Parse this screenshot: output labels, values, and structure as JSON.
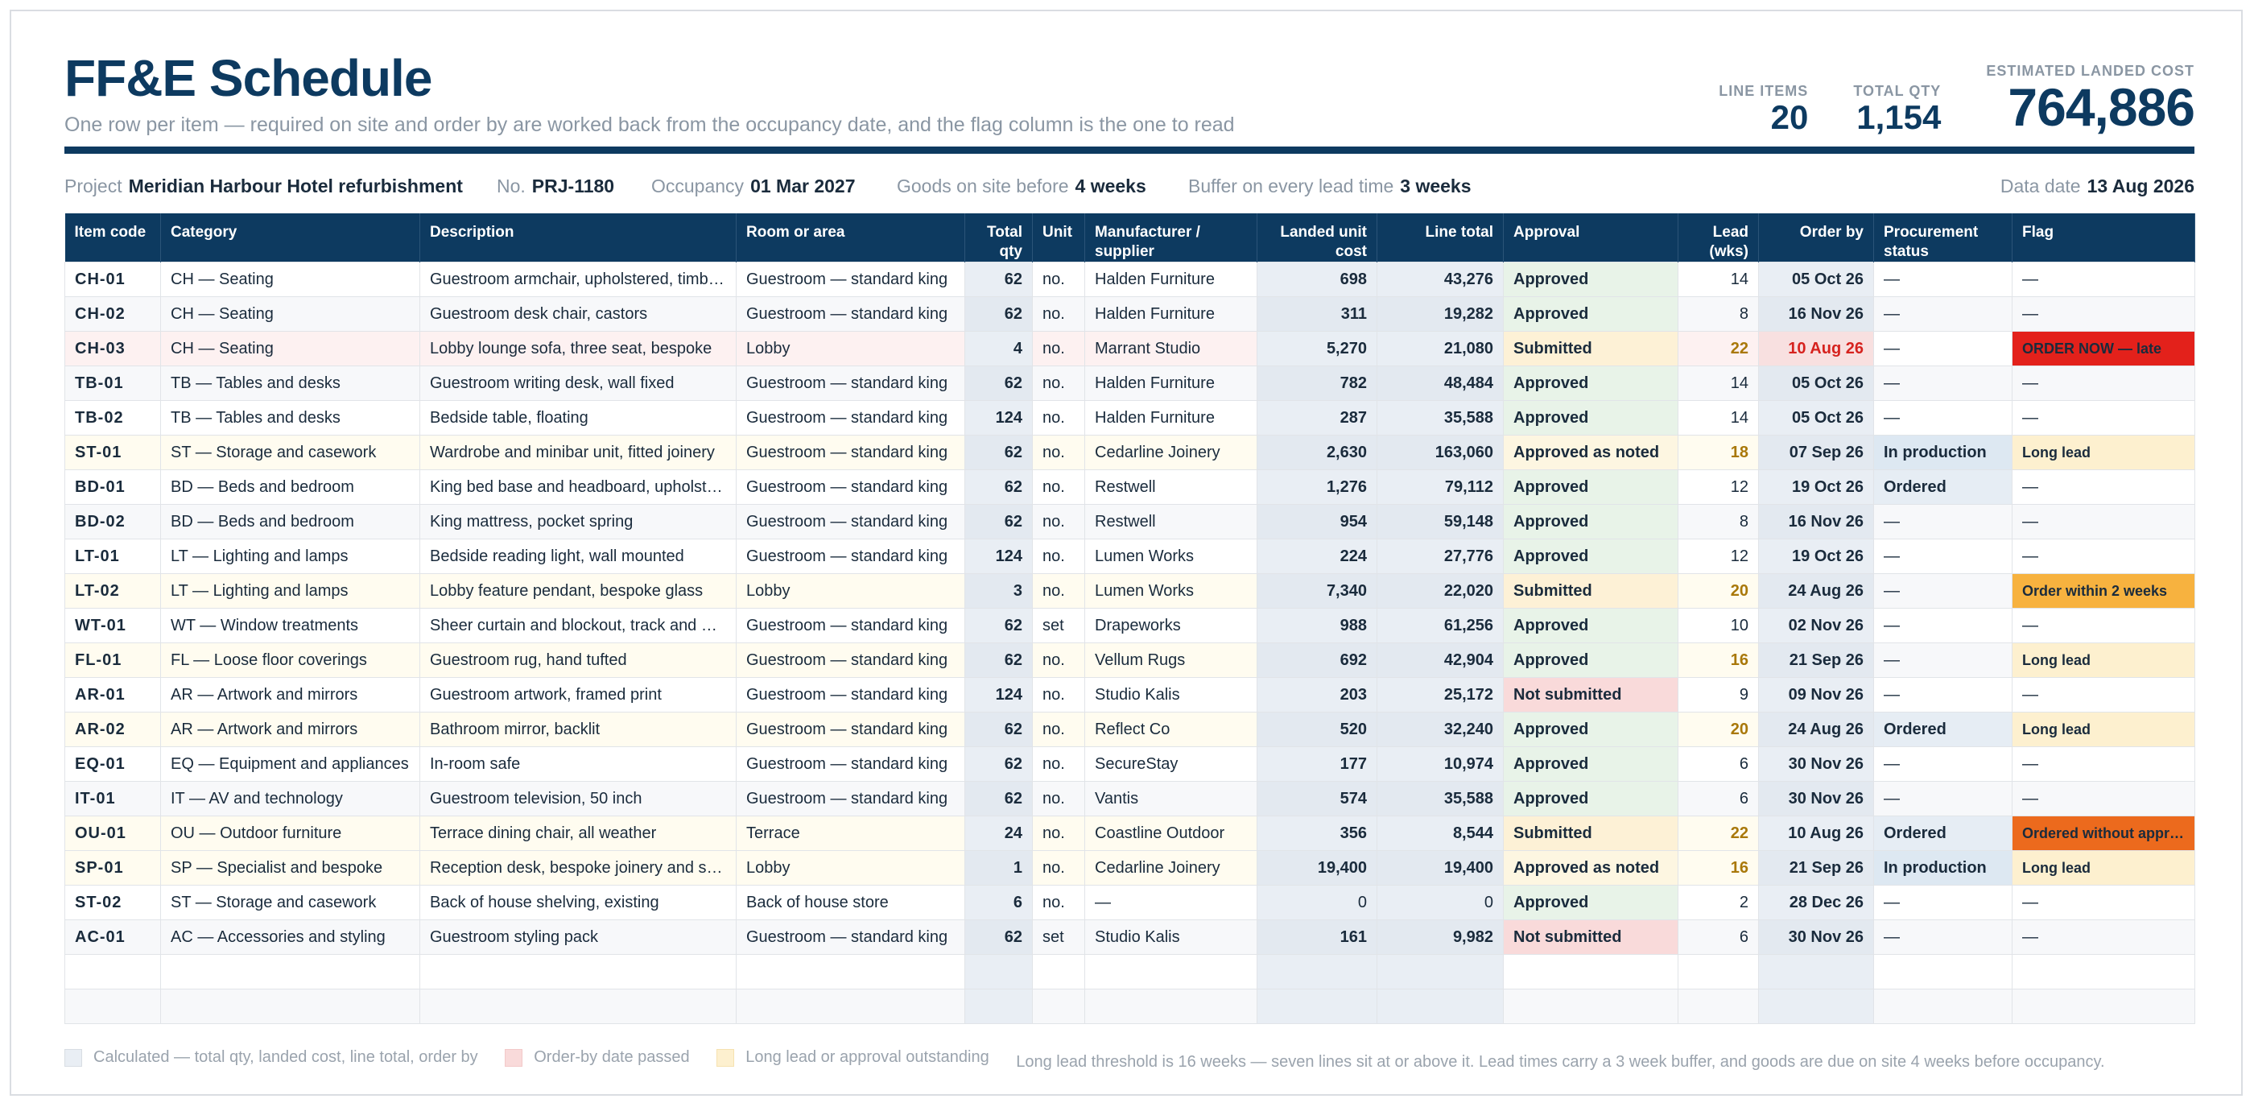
{
  "title": "FF&E Schedule",
  "subtitle": "One row per item — required on site and order by are worked back from the occupancy date, and the flag column is the one to read",
  "kpis": [
    {
      "label": "LINE ITEMS",
      "value": "20"
    },
    {
      "label": "TOTAL QTY",
      "value": "1,154"
    },
    {
      "label": "ESTIMATED LANDED COST",
      "value": "764,886"
    }
  ],
  "meta": {
    "project_label": "Project",
    "project": "Meridian Harbour Hotel refurbishment",
    "no_label": "No.",
    "no": "PRJ-1180",
    "occupancy_label": "Occupancy",
    "occupancy": "01 Mar 2027",
    "onsite_label": "Goods on site before",
    "onsite": "4 weeks",
    "buffer_label": "Buffer on every lead time",
    "buffer": "3 weeks",
    "date_label": "Data date",
    "date": "13 Aug 2026"
  },
  "columns": [
    "Item code",
    "Category",
    "Description",
    "Room or area",
    "Total qty",
    "Unit",
    "Manufacturer / supplier",
    "Landed unit cost",
    "Line total",
    "Approval",
    "Lead (wks)",
    "Order by",
    "Procurement status",
    "Flag"
  ],
  "rows": [
    {
      "code": "CH-01",
      "cat": "CH — Seating",
      "desc": "Guestroom armchair, upholstered, timber frame",
      "room": "Guestroom — standard king",
      "qty": "62",
      "unit": "no.",
      "supplier": "Halden Furniture",
      "unitcost": "698",
      "total": "43,276",
      "approval": "Approved",
      "lead": "14",
      "order": "05 Oct 26",
      "status": "—",
      "flag": "—"
    },
    {
      "code": "CH-02",
      "cat": "CH — Seating",
      "desc": "Guestroom desk chair, castors",
      "room": "Guestroom — standard king",
      "qty": "62",
      "unit": "no.",
      "supplier": "Halden Furniture",
      "unitcost": "311",
      "total": "19,282",
      "approval": "Approved",
      "lead": "8",
      "order": "16 Nov 26",
      "status": "—",
      "flag": "—"
    },
    {
      "code": "CH-03",
      "cat": "CH — Seating",
      "desc": "Lobby lounge sofa, three seat, bespoke",
      "room": "Lobby",
      "qty": "4",
      "unit": "no.",
      "supplier": "Marrant Studio",
      "unitcost": "5,270",
      "total": "21,080",
      "approval": "Submitted",
      "lead": "22",
      "order": "10 Aug 26",
      "status": "—",
      "flag": "ORDER NOW — late"
    },
    {
      "code": "TB-01",
      "cat": "TB — Tables and desks",
      "desc": "Guestroom writing desk, wall fixed",
      "room": "Guestroom — standard king",
      "qty": "62",
      "unit": "no.",
      "supplier": "Halden Furniture",
      "unitcost": "782",
      "total": "48,484",
      "approval": "Approved",
      "lead": "14",
      "order": "05 Oct 26",
      "status": "—",
      "flag": "—"
    },
    {
      "code": "TB-02",
      "cat": "TB — Tables and desks",
      "desc": "Bedside table, floating",
      "room": "Guestroom — standard king",
      "qty": "124",
      "unit": "no.",
      "supplier": "Halden Furniture",
      "unitcost": "287",
      "total": "35,588",
      "approval": "Approved",
      "lead": "14",
      "order": "05 Oct 26",
      "status": "—",
      "flag": "—"
    },
    {
      "code": "ST-01",
      "cat": "ST — Storage and casework",
      "desc": "Wardrobe and minibar unit, fitted joinery",
      "room": "Guestroom — standard king",
      "qty": "62",
      "unit": "no.",
      "supplier": "Cedarline Joinery",
      "unitcost": "2,630",
      "total": "163,060",
      "approval": "Approved as noted",
      "lead": "18",
      "order": "07 Sep 26",
      "status": "In production",
      "flag": "Long lead"
    },
    {
      "code": "BD-01",
      "cat": "BD — Beds and bedroom",
      "desc": "King bed base and headboard, upholstered",
      "room": "Guestroom — standard king",
      "qty": "62",
      "unit": "no.",
      "supplier": "Restwell",
      "unitcost": "1,276",
      "total": "79,112",
      "approval": "Approved",
      "lead": "12",
      "order": "19 Oct 26",
      "status": "Ordered",
      "flag": "—"
    },
    {
      "code": "BD-02",
      "cat": "BD — Beds and bedroom",
      "desc": "King mattress, pocket spring",
      "room": "Guestroom — standard king",
      "qty": "62",
      "unit": "no.",
      "supplier": "Restwell",
      "unitcost": "954",
      "total": "59,148",
      "approval": "Approved",
      "lead": "8",
      "order": "16 Nov 26",
      "status": "—",
      "flag": "—"
    },
    {
      "code": "LT-01",
      "cat": "LT — Lighting and lamps",
      "desc": "Bedside reading light, wall mounted",
      "room": "Guestroom — standard king",
      "qty": "124",
      "unit": "no.",
      "supplier": "Lumen Works",
      "unitcost": "224",
      "total": "27,776",
      "approval": "Approved",
      "lead": "12",
      "order": "19 Oct 26",
      "status": "—",
      "flag": "—"
    },
    {
      "code": "LT-02",
      "cat": "LT — Lighting and lamps",
      "desc": "Lobby feature pendant, bespoke glass",
      "room": "Lobby",
      "qty": "3",
      "unit": "no.",
      "supplier": "Lumen Works",
      "unitcost": "7,340",
      "total": "22,020",
      "approval": "Submitted",
      "lead": "20",
      "order": "24 Aug 26",
      "status": "—",
      "flag": "Order within 2 weeks"
    },
    {
      "code": "WT-01",
      "cat": "WT — Window treatments",
      "desc": "Sheer curtain and blockout, track and motor",
      "room": "Guestroom — standard king",
      "qty": "62",
      "unit": "set",
      "supplier": "Drapeworks",
      "unitcost": "988",
      "total": "61,256",
      "approval": "Approved",
      "lead": "10",
      "order": "02 Nov 26",
      "status": "—",
      "flag": "—"
    },
    {
      "code": "FL-01",
      "cat": "FL — Loose floor coverings",
      "desc": "Guestroom rug, hand tufted",
      "room": "Guestroom — standard king",
      "qty": "62",
      "unit": "no.",
      "supplier": "Vellum Rugs",
      "unitcost": "692",
      "total": "42,904",
      "approval": "Approved",
      "lead": "16",
      "order": "21 Sep 26",
      "status": "—",
      "flag": "Long lead"
    },
    {
      "code": "AR-01",
      "cat": "AR — Artwork and mirrors",
      "desc": "Guestroom artwork, framed print",
      "room": "Guestroom — standard king",
      "qty": "124",
      "unit": "no.",
      "supplier": "Studio Kalis",
      "unitcost": "203",
      "total": "25,172",
      "approval": "Not submitted",
      "lead": "9",
      "order": "09 Nov 26",
      "status": "—",
      "flag": "—"
    },
    {
      "code": "AR-02",
      "cat": "AR — Artwork and mirrors",
      "desc": "Bathroom mirror, backlit",
      "room": "Guestroom — standard king",
      "qty": "62",
      "unit": "no.",
      "supplier": "Reflect Co",
      "unitcost": "520",
      "total": "32,240",
      "approval": "Approved",
      "lead": "20",
      "order": "24 Aug 26",
      "status": "Ordered",
      "flag": "Long lead"
    },
    {
      "code": "EQ-01",
      "cat": "EQ — Equipment and appliances",
      "desc": "In-room safe",
      "room": "Guestroom — standard king",
      "qty": "62",
      "unit": "no.",
      "supplier": "SecureStay",
      "unitcost": "177",
      "total": "10,974",
      "approval": "Approved",
      "lead": "6",
      "order": "30 Nov 26",
      "status": "—",
      "flag": "—"
    },
    {
      "code": "IT-01",
      "cat": "IT — AV and technology",
      "desc": "Guestroom television, 50 inch",
      "room": "Guestroom — standard king",
      "qty": "62",
      "unit": "no.",
      "supplier": "Vantis",
      "unitcost": "574",
      "total": "35,588",
      "approval": "Approved",
      "lead": "6",
      "order": "30 Nov 26",
      "status": "—",
      "flag": "—"
    },
    {
      "code": "OU-01",
      "cat": "OU — Outdoor furniture",
      "desc": "Terrace dining chair, all weather",
      "room": "Terrace",
      "qty": "24",
      "unit": "no.",
      "supplier": "Coastline Outdoor",
      "unitcost": "356",
      "total": "8,544",
      "approval": "Submitted",
      "lead": "22",
      "order": "10 Aug 26",
      "status": "Ordered",
      "flag": "Ordered without approval"
    },
    {
      "code": "SP-01",
      "cat": "SP — Specialist and bespoke",
      "desc": "Reception desk, bespoke joinery and stone",
      "room": "Lobby",
      "qty": "1",
      "unit": "no.",
      "supplier": "Cedarline Joinery",
      "unitcost": "19,400",
      "total": "19,400",
      "approval": "Approved as noted",
      "lead": "16",
      "order": "21 Sep 26",
      "status": "In production",
      "flag": "Long lead"
    },
    {
      "code": "ST-02",
      "cat": "ST — Storage and casework",
      "desc": "Back of house shelving, existing",
      "room": "Back of house store",
      "qty": "6",
      "unit": "no.",
      "supplier": "—",
      "unitcost": "0",
      "total": "0",
      "approval": "Approved",
      "lead": "2",
      "order": "28 Dec 26",
      "status": "—",
      "flag": "—"
    },
    {
      "code": "AC-01",
      "cat": "AC — Accessories and styling",
      "desc": "Guestroom styling pack",
      "room": "Guestroom — standard king",
      "qty": "62",
      "unit": "set",
      "supplier": "Studio Kalis",
      "unitcost": "161",
      "total": "9,982",
      "approval": "Not submitted",
      "lead": "6",
      "order": "30 Nov 26",
      "status": "—",
      "flag": "—"
    }
  ],
  "legend": {
    "calc": "Calculated — total qty, landed cost, line total, order by",
    "late": "Order-by date passed",
    "lead": "Long lead or approval outstanding",
    "note": "Long lead threshold is 16 weeks — seven lines sit at or above it. Lead times carry a 3 week buffer, and goods are due on site 4 weeks before occupancy."
  },
  "colors": {
    "navy": "#0d3a60",
    "late": "#e3211b",
    "warn": "#f7b23f",
    "orange": "#ec6a1d"
  }
}
